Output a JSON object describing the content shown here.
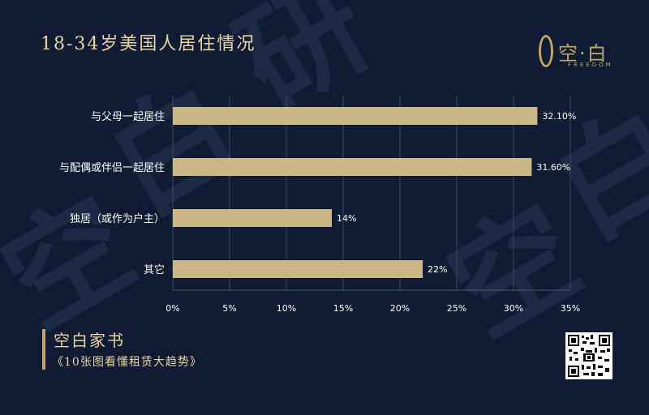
{
  "header": {
    "title": "18-34岁美国人居住情况"
  },
  "logo": {
    "text": "空·白",
    "sub": "FREEDOM",
    "watermark_chars": [
      "空",
      "白",
      "研",
      "空",
      "白",
      "空",
      "白"
    ]
  },
  "footer": {
    "book_title": "空白家书",
    "book_subtitle": "《10张图看懂租赁大趋势》"
  },
  "colors": {
    "background": "#0f1c33",
    "bar": "#cdb787",
    "accent": "#c7a465",
    "text": "#ffffff"
  },
  "chart_data": {
    "type": "bar",
    "orientation": "horizontal",
    "categories": [
      "与父母一起居住",
      "与配偶或伴侣一起居住",
      "独居（或作为户主）",
      "其它"
    ],
    "values": [
      32.1,
      31.6,
      14,
      22
    ],
    "value_labels": [
      "32.10%",
      "31.60%",
      "14%",
      "22%"
    ],
    "x_ticks": [
      "0%",
      "5%",
      "10%",
      "15%",
      "20%",
      "25%",
      "30%",
      "35%"
    ],
    "xlim": [
      0,
      35
    ],
    "grid": true
  }
}
